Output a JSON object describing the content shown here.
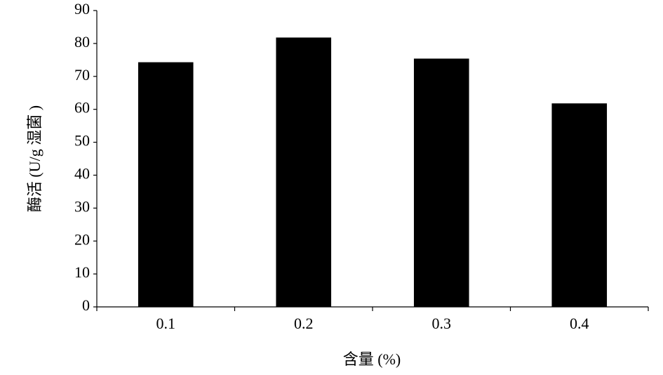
{
  "chart_data": {
    "type": "bar",
    "x_label": "含量 (%)",
    "y_label": "酶活 (U/g 湿菌 )",
    "categories": [
      "0.1",
      "0.2",
      "0.3",
      "0.4"
    ],
    "values": [
      74.3,
      81.8,
      75.4,
      61.8
    ],
    "color": "#000000",
    "ylim": [
      0,
      90
    ],
    "yticks": [
      0,
      10,
      20,
      30,
      40,
      50,
      60,
      70,
      80,
      90
    ],
    "grid": false
  }
}
